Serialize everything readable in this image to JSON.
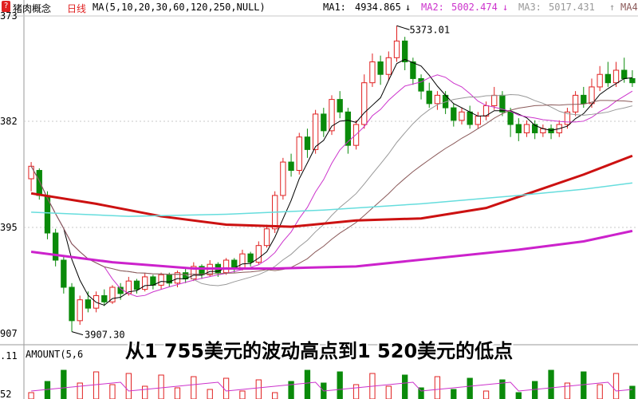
{
  "header": {
    "icon": "red-question-icon",
    "stock_name": "猪肉概念",
    "period": "日线",
    "ma_params": "MA(5,10,20,30,60,120,250,NULL)",
    "ma1_label": "MA1:",
    "ma1_value": "4934.865",
    "ma1_arrow": "↓",
    "ma2_label": "MA2:",
    "ma2_value": "5002.474",
    "ma2_arrow": "↓",
    "ma3_label": "MA3:",
    "ma3_value": "5017.431",
    "ma3_arrow": "↑",
    "ma4_label": "MA4:",
    "ma4_arrow": "↑"
  },
  "y_axis_labels": [
    "373",
    "382",
    "395",
    "907",
    ".11",
    "52"
  ],
  "annotations": {
    "high": "5373.01",
    "low": "3907.30"
  },
  "volume_header": "AMOUNT(5,6",
  "subtitle": "从1 755美元的波动高点到1 520美元的低点",
  "colors": {
    "up": "#e02020",
    "down": "#0a8a0a",
    "ma1": "#000000",
    "ma2": "#cc33cc",
    "ma3": "#999999",
    "ma4": "#8b5a5a",
    "ma60": "#cc1111",
    "ma120": "#66dddd",
    "ma250": "#cc22cc",
    "grid": "#c8c8c8"
  },
  "chart_data": {
    "type": "candlestick",
    "title": "猪肉概念 日线",
    "ylim": [
      3860,
      5420
    ],
    "high": 5373.01,
    "low": 3907.3,
    "candles": [
      [
        4640,
        4700,
        4720,
        4580
      ],
      [
        4680,
        4560,
        4690,
        4540
      ],
      [
        4560,
        4380,
        4580,
        4350
      ],
      [
        4380,
        4250,
        4400,
        4220
      ],
      [
        4250,
        4120,
        4270,
        4090
      ],
      [
        4120,
        3960,
        4140,
        3907.3
      ],
      [
        3960,
        4060,
        4080,
        3940
      ],
      [
        4060,
        4020,
        4100,
        4000
      ],
      [
        4020,
        4080,
        4100,
        4000
      ],
      [
        4080,
        4050,
        4110,
        4030
      ],
      [
        4050,
        4120,
        4130,
        4040
      ],
      [
        4120,
        4090,
        4140,
        4060
      ],
      [
        4090,
        4150,
        4170,
        4080
      ],
      [
        4150,
        4110,
        4160,
        4090
      ],
      [
        4110,
        4170,
        4190,
        4100
      ],
      [
        4170,
        4130,
        4180,
        4110
      ],
      [
        4130,
        4180,
        4190,
        4110
      ],
      [
        4180,
        4140,
        4190,
        4120
      ],
      [
        4140,
        4190,
        4200,
        4120
      ],
      [
        4190,
        4160,
        4210,
        4140
      ],
      [
        4160,
        4220,
        4240,
        4150
      ],
      [
        4220,
        4180,
        4230,
        4160
      ],
      [
        4180,
        4230,
        4250,
        4170
      ],
      [
        4230,
        4190,
        4240,
        4170
      ],
      [
        4190,
        4250,
        4260,
        4180
      ],
      [
        4250,
        4210,
        4260,
        4190
      ],
      [
        4210,
        4280,
        4300,
        4200
      ],
      [
        4280,
        4240,
        4290,
        4220
      ],
      [
        4240,
        4320,
        4340,
        4230
      ],
      [
        4320,
        4400,
        4420,
        4310
      ],
      [
        4400,
        4560,
        4580,
        4380
      ],
      [
        4560,
        4720,
        4740,
        4540
      ],
      [
        4720,
        4680,
        4760,
        4650
      ],
      [
        4680,
        4840,
        4860,
        4660
      ],
      [
        4840,
        4780,
        4880,
        4740
      ],
      [
        4780,
        4950,
        4970,
        4760
      ],
      [
        4950,
        4870,
        4980,
        4840
      ],
      [
        4870,
        5020,
        5040,
        4850
      ],
      [
        5020,
        4960,
        5060,
        4930
      ],
      [
        4960,
        4800,
        4980,
        4760
      ],
      [
        4800,
        4900,
        4920,
        4780
      ],
      [
        4900,
        5100,
        5140,
        4880
      ],
      [
        5100,
        5200,
        5240,
        5080
      ],
      [
        5200,
        5140,
        5230,
        5090
      ],
      [
        5140,
        5220,
        5250,
        5110
      ],
      [
        5220,
        5300,
        5373.01,
        5200
      ],
      [
        5300,
        5200,
        5320,
        5160
      ],
      [
        5200,
        5120,
        5220,
        5090
      ],
      [
        5120,
        5060,
        5140,
        5020
      ],
      [
        5060,
        5000,
        5100,
        4980
      ],
      [
        5000,
        5040,
        5060,
        4970
      ],
      [
        5040,
        4980,
        5060,
        4950
      ],
      [
        4980,
        4920,
        5000,
        4890
      ],
      [
        4920,
        4960,
        4980,
        4900
      ],
      [
        4960,
        4900,
        4990,
        4880
      ],
      [
        4900,
        4940,
        4960,
        4880
      ],
      [
        4940,
        4990,
        5010,
        4920
      ],
      [
        4990,
        5040,
        5080,
        4970
      ],
      [
        5040,
        4960,
        5060,
        4940
      ],
      [
        4960,
        4900,
        4980,
        4840
      ],
      [
        4900,
        4860,
        4930,
        4820
      ],
      [
        4860,
        4900,
        4920,
        4840
      ],
      [
        4900,
        4860,
        4920,
        4830
      ],
      [
        4860,
        4880,
        4900,
        4840
      ],
      [
        4880,
        4860,
        4900,
        4830
      ],
      [
        4860,
        4900,
        4920,
        4840
      ],
      [
        4900,
        4960,
        4980,
        4880
      ],
      [
        4960,
        5040,
        5060,
        4940
      ],
      [
        5040,
        5000,
        5080,
        4980
      ],
      [
        5000,
        5080,
        5120,
        4980
      ],
      [
        5080,
        5140,
        5180,
        5060
      ],
      [
        5140,
        5100,
        5200,
        5080
      ],
      [
        5100,
        5160,
        5200,
        5080
      ],
      [
        5160,
        5120,
        5220,
        5100
      ],
      [
        5120,
        5100,
        5160,
        5080
      ]
    ]
  }
}
